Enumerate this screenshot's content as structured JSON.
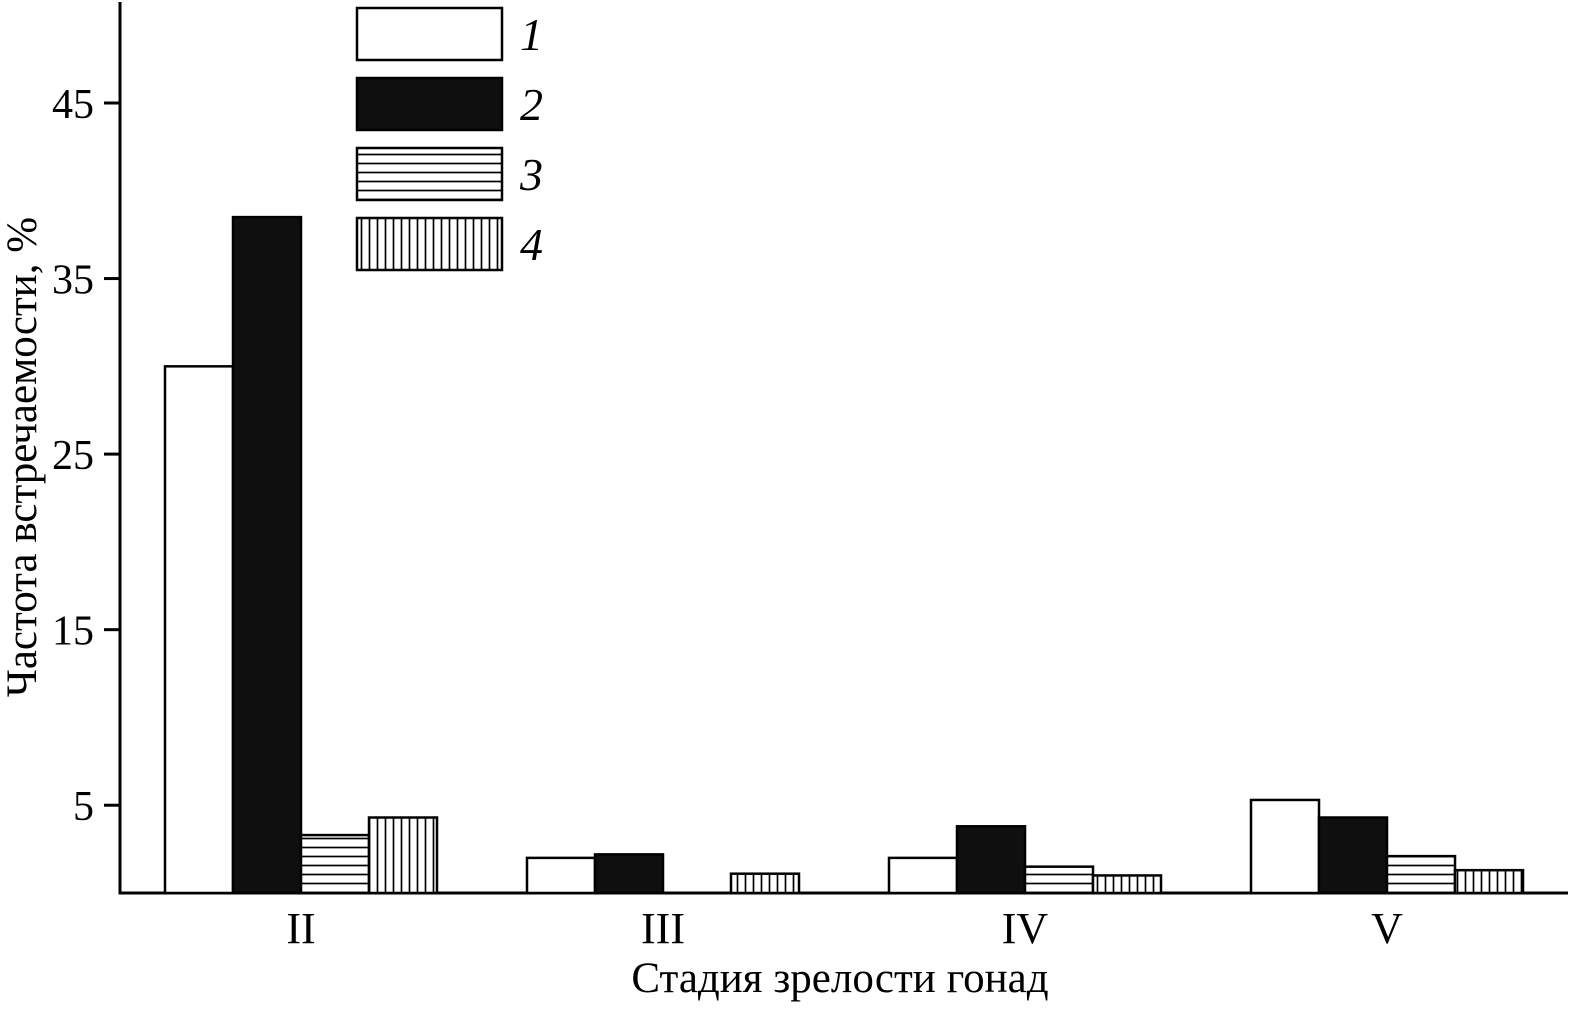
{
  "chart_data": {
    "type": "bar",
    "title": "",
    "xlabel": "Стадия зрелости гонад",
    "ylabel": "Частота встречаемости, %",
    "categories": [
      "II",
      "III",
      "IV",
      "V"
    ],
    "series": [
      {
        "name": "1",
        "style": "white",
        "values": [
          30.0,
          2.0,
          2.0,
          5.3
        ]
      },
      {
        "name": "2",
        "style": "black",
        "values": [
          38.5,
          2.2,
          3.8,
          4.3
        ]
      },
      {
        "name": "3",
        "style": "hstripe",
        "values": [
          3.3,
          0,
          1.5,
          2.1
        ]
      },
      {
        "name": "4",
        "style": "vstripe",
        "values": [
          4.3,
          1.1,
          1.0,
          1.3
        ]
      }
    ],
    "yticks": [
      5,
      15,
      25,
      35,
      45
    ],
    "ylim": [
      0,
      50
    ],
    "grid": false,
    "legend_position": "top-left-inside"
  },
  "colors": {
    "axis": "#000000",
    "bar_black": "#0f0f0f",
    "bar_white": "#ffffff",
    "background": "#ffffff"
  }
}
